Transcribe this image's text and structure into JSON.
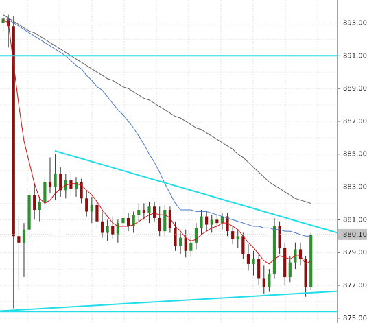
{
  "chart_data": {
    "type": "candlestick",
    "xlim": [
      -0.6,
      64.1
    ],
    "ylim": [
      874.7,
      894.4
    ],
    "yticks": [
      {
        "value": 875,
        "label": "875.00"
      },
      {
        "value": 877,
        "label": "877.00"
      },
      {
        "value": 879,
        "label": "879.00"
      },
      {
        "value": 881,
        "label": "881.00"
      },
      {
        "value": 883,
        "label": "883.00"
      },
      {
        "value": 885,
        "label": "885.00"
      },
      {
        "value": 887,
        "label": "887.00"
      },
      {
        "value": 889,
        "label": "889.00"
      },
      {
        "value": 891,
        "label": "891.00"
      },
      {
        "value": 893,
        "label": "893.00"
      }
    ],
    "grid": true,
    "up_color": "#2f8f2f",
    "down_color": "#8a1010",
    "wick_color": "#333333",
    "candles": {
      "open": [
        893.0,
        893.3,
        892.8,
        880.0,
        879.6,
        880.4,
        882.5,
        881.6,
        882.1,
        883.3,
        883.0,
        883.8,
        882.8,
        883.4,
        882.9,
        883.3,
        882.3,
        881.5,
        881.9,
        880.9,
        880.2,
        880.6,
        880.1,
        880.8,
        881.1,
        880.6,
        881.3,
        881.6,
        881.4,
        881.8,
        881.1,
        880.3,
        881.6,
        880.5,
        879.4,
        879.9,
        879.1,
        879.6,
        880.5,
        881.2,
        880.7,
        881.0,
        880.8,
        881.2,
        880.3,
        879.8,
        880.0,
        878.9,
        878.3,
        878.6,
        877.4,
        876.9,
        877.7,
        880.6,
        879.3,
        877.5,
        878.4,
        879.2,
        878.6,
        876.9
      ],
      "high": [
        893.6,
        893.5,
        893.4,
        881.2,
        880.8,
        882.8,
        883.2,
        882.4,
        883.6,
        884.8,
        885.0,
        884.2,
        883.8,
        883.9,
        883.6,
        883.5,
        882.8,
        882.4,
        882.2,
        881.5,
        881.0,
        881.2,
        881.0,
        881.4,
        881.4,
        881.5,
        882.0,
        882.0,
        882.1,
        882.1,
        881.8,
        881.9,
        881.8,
        880.9,
        880.2,
        880.4,
        880.0,
        880.8,
        881.6,
        881.5,
        881.3,
        881.3,
        881.4,
        881.4,
        880.6,
        880.4,
        880.2,
        879.5,
        879.1,
        878.9,
        878.2,
        878.0,
        881.1,
        880.9,
        879.6,
        878.8,
        879.6,
        879.6,
        878.8,
        880.2
      ],
      "low": [
        892.4,
        891.5,
        875.6,
        876.8,
        877.5,
        879.8,
        881.0,
        880.9,
        881.8,
        882.6,
        882.2,
        882.4,
        882.3,
        882.5,
        882.4,
        882.0,
        881.2,
        880.8,
        880.5,
        879.9,
        879.7,
        879.8,
        879.6,
        880.4,
        880.3,
        880.2,
        880.9,
        881.0,
        880.8,
        880.9,
        880.0,
        880.0,
        880.2,
        879.1,
        878.9,
        878.7,
        878.8,
        879.2,
        880.1,
        880.3,
        880.2,
        880.5,
        880.4,
        880.0,
        879.5,
        879.3,
        878.6,
        877.9,
        877.6,
        877.0,
        876.5,
        876.6,
        877.4,
        878.9,
        877.0,
        877.2,
        878.0,
        878.2,
        876.3,
        876.7
      ],
      "close": [
        893.3,
        892.8,
        880.0,
        879.6,
        880.4,
        882.5,
        881.6,
        882.1,
        883.3,
        883.0,
        883.8,
        882.8,
        883.4,
        882.9,
        883.3,
        882.3,
        881.5,
        881.9,
        880.9,
        880.2,
        880.6,
        880.1,
        880.8,
        881.1,
        880.6,
        881.3,
        881.6,
        881.4,
        881.8,
        881.1,
        880.3,
        881.6,
        880.5,
        879.4,
        879.9,
        879.1,
        879.6,
        880.5,
        881.2,
        880.7,
        881.0,
        880.8,
        881.2,
        880.3,
        879.8,
        880.0,
        878.9,
        878.3,
        878.6,
        877.4,
        876.9,
        877.7,
        880.6,
        879.3,
        877.5,
        878.4,
        879.2,
        878.6,
        876.9,
        880.1
      ]
    },
    "indicators": [
      {
        "color": "#606060",
        "values": [
          893.5,
          893.3,
          893.1,
          892.9,
          892.7,
          892.5,
          892.4,
          892.2,
          892.0,
          891.8,
          891.6,
          891.4,
          891.2,
          891.0,
          890.8,
          890.6,
          890.4,
          890.2,
          890.0,
          889.8,
          889.6,
          889.5,
          889.3,
          889.1,
          889.0,
          888.8,
          888.6,
          888.4,
          888.3,
          888.1,
          887.9,
          887.7,
          887.5,
          887.3,
          887.2,
          887.0,
          886.8,
          886.6,
          886.5,
          886.3,
          886.1,
          885.9,
          885.7,
          885.5,
          885.3,
          885.0,
          884.8,
          884.5,
          884.2,
          883.9,
          883.6,
          883.3,
          883.1,
          882.9,
          882.7,
          882.5,
          882.3,
          882.2,
          882.1,
          882.0
        ]
      },
      {
        "color": "#4a78c8",
        "values": [
          893.3,
          893.2,
          893.0,
          892.8,
          892.6,
          892.4,
          892.2,
          892.0,
          891.8,
          891.6,
          891.4,
          891.2,
          891.0,
          890.7,
          890.4,
          890.2,
          889.8,
          889.5,
          889.1,
          888.9,
          888.5,
          888.1,
          887.7,
          887.4,
          887.0,
          886.6,
          886.1,
          885.6,
          885.0,
          884.5,
          883.9,
          883.2,
          882.6,
          882.0,
          881.6,
          881.6,
          881.6,
          881.5,
          881.5,
          881.5,
          881.4,
          881.3,
          881.2,
          881.1,
          881.0,
          880.9,
          880.8,
          880.7,
          880.6,
          880.6,
          880.5,
          880.5,
          880.4,
          880.4,
          880.3,
          880.3,
          880.2,
          880.1,
          880.0,
          880.0
        ]
      },
      {
        "color": "#d01010",
        "values": [
          893.2,
          893.0,
          890.5,
          888.0,
          885.8,
          884.5,
          883.2,
          882.3,
          882.0,
          882.2,
          882.6,
          882.9,
          883.1,
          883.2,
          883.2,
          883.1,
          882.8,
          882.5,
          882.1,
          881.6,
          881.2,
          880.8,
          880.6,
          880.6,
          880.6,
          880.7,
          880.9,
          881.1,
          881.3,
          881.4,
          881.3,
          881.3,
          881.1,
          880.6,
          880.3,
          879.9,
          879.7,
          879.8,
          880.1,
          880.3,
          880.5,
          880.6,
          880.8,
          880.8,
          880.6,
          880.4,
          880.0,
          879.6,
          879.3,
          878.9,
          878.5,
          878.3,
          878.6,
          878.8,
          878.7,
          878.6,
          878.8,
          878.8,
          878.3,
          878.5
        ]
      }
    ],
    "trendlines": [
      {
        "color": "#22dde8",
        "x1": -0.6,
        "y1": 891.0,
        "x2": 64.1,
        "y2": 891.0
      },
      {
        "color": "#22dde8",
        "x1": -0.6,
        "y1": 875.4,
        "x2": 64.1,
        "y2": 875.4
      },
      {
        "color": "#22dde8",
        "x1": 9.9,
        "y1": 885.2,
        "x2": 64.1,
        "y2": 880.2
      },
      {
        "color": "#22dde8",
        "x1": -0.6,
        "y1": 875.43,
        "x2": 64.1,
        "y2": 876.64
      }
    ],
    "last_price": {
      "value": 880.1,
      "label": "880.10"
    }
  }
}
